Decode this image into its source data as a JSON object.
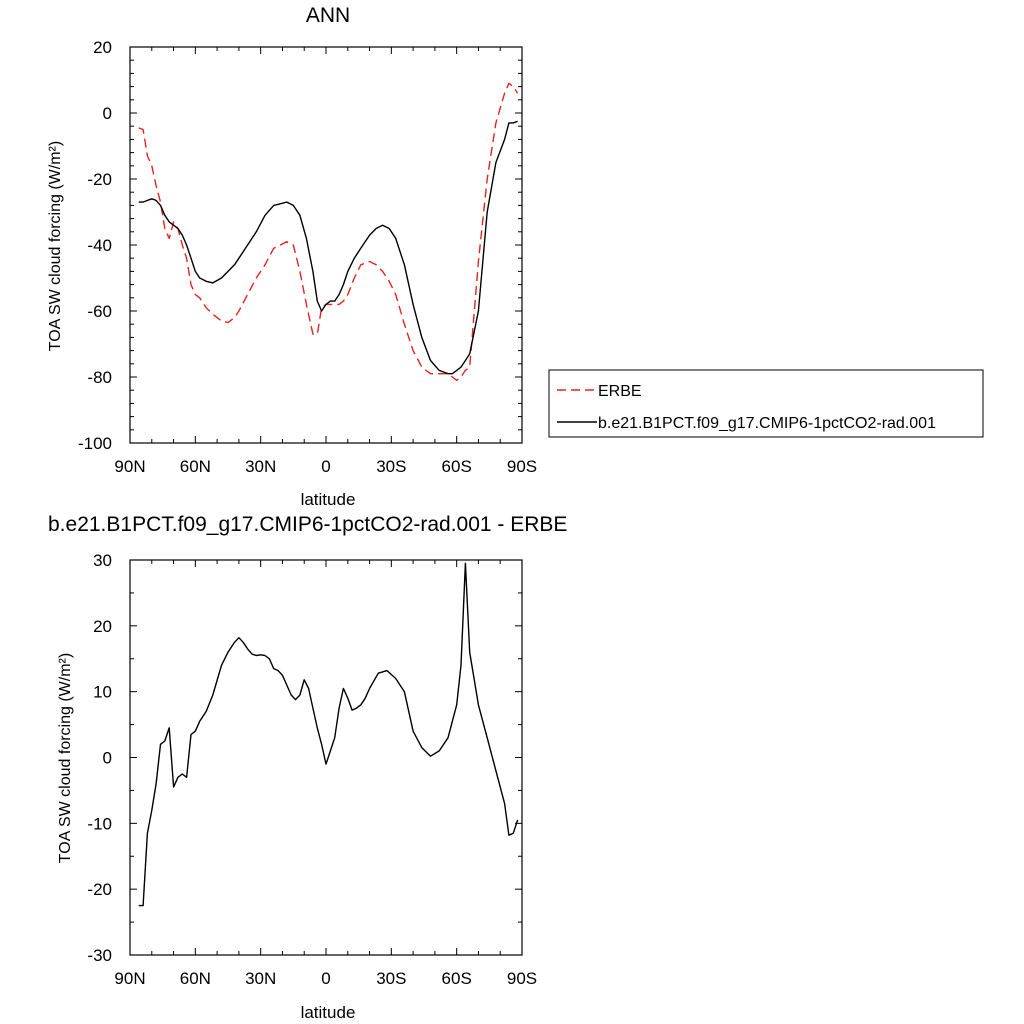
{
  "chart_data": [
    {
      "type": "line",
      "title": "ANN",
      "xlabel": "latitude",
      "ylabel": "TOA SW cloud forcing (W/m²)",
      "xlim": [
        90,
        -90
      ],
      "ylim": [
        -100,
        20
      ],
      "xticks": [
        {
          "value": 90,
          "label": "90N"
        },
        {
          "value": 60,
          "label": "60N"
        },
        {
          "value": 30,
          "label": "30N"
        },
        {
          "value": 0,
          "label": "0"
        },
        {
          "value": -30,
          "label": "30S"
        },
        {
          "value": -60,
          "label": "60S"
        },
        {
          "value": -90,
          "label": "90S"
        }
      ],
      "yticks": [
        20,
        0,
        -20,
        -40,
        -60,
        -80,
        -100
      ],
      "legend_position": "right",
      "series": [
        {
          "name": "ERBE",
          "color": "#e8231c",
          "dash": "dashed",
          "x": [
            86,
            84,
            82,
            80,
            78,
            76,
            74,
            72,
            70,
            68,
            66,
            64,
            62,
            60,
            58,
            55,
            52,
            48,
            45,
            42,
            40,
            36,
            32,
            28,
            24,
            21,
            18,
            15,
            12,
            9,
            6,
            4,
            2,
            0,
            -2,
            -4,
            -6,
            -8,
            -10,
            -13,
            -16,
            -20,
            -23,
            -26,
            -29,
            -32,
            -36,
            -40,
            -44,
            -48,
            -52,
            -56,
            -58,
            -60,
            -62,
            -64,
            -66,
            -70,
            -74,
            -78,
            -82,
            -84,
            -86,
            -88
          ],
          "values": [
            -4.5,
            -5,
            -13,
            -16,
            -22,
            -27,
            -35,
            -38,
            -33,
            -35,
            -40,
            -44,
            -52,
            -55,
            -56,
            -59,
            -61,
            -63,
            -63.5,
            -62,
            -60,
            -55,
            -50,
            -46,
            -41,
            -40,
            -39,
            -40,
            -48,
            -58,
            -67,
            -67,
            -59,
            -58,
            -58,
            -58,
            -58,
            -57,
            -55,
            -50,
            -46,
            -45,
            -46,
            -48,
            -51,
            -55,
            -64,
            -72,
            -77,
            -79,
            -79,
            -79,
            -80,
            -81,
            -80,
            -78,
            -77,
            -45,
            -20,
            -3,
            6,
            9,
            8,
            6
          ]
        },
        {
          "name": "b.e21.B1PCT.f09_g17.CMIP6-1pctCO2-rad.001",
          "color": "#000000",
          "dash": "solid",
          "x": [
            86,
            84,
            82,
            80,
            78,
            76,
            74,
            72,
            70,
            68,
            66,
            64,
            62,
            60,
            58,
            55,
            52,
            48,
            45,
            42,
            40,
            36,
            32,
            28,
            24,
            21,
            18,
            15,
            12,
            9,
            6,
            4,
            2,
            0,
            -2,
            -4,
            -6,
            -8,
            -10,
            -13,
            -16,
            -20,
            -23,
            -26,
            -29,
            -32,
            -36,
            -40,
            -44,
            -48,
            -52,
            -56,
            -58,
            -60,
            -62,
            -64,
            -66,
            -70,
            -74,
            -78,
            -82,
            -84,
            -86,
            -88
          ],
          "values": [
            -27,
            -27,
            -26.5,
            -26,
            -26.5,
            -28,
            -31,
            -33,
            -34,
            -35,
            -37,
            -40,
            -44,
            -48,
            -50,
            -51,
            -51.5,
            -50,
            -48,
            -46,
            -44,
            -40,
            -36,
            -31,
            -28,
            -27.5,
            -27,
            -28,
            -31,
            -38,
            -48,
            -57,
            -60,
            -58,
            -57,
            -57,
            -55,
            -52,
            -48,
            -44,
            -41,
            -37,
            -35,
            -34,
            -35,
            -38,
            -46,
            -58,
            -68,
            -75,
            -78,
            -79,
            -79,
            -78,
            -77,
            -75,
            -73,
            -60,
            -30,
            -15,
            -8,
            -3,
            -3,
            -2.5
          ]
        }
      ]
    },
    {
      "type": "line",
      "title": "b.e21.B1PCT.f09_g17.CMIP6-1pctCO2-rad.001 - ERBE",
      "xlabel": "latitude",
      "ylabel": "TOA SW cloud forcing (W/m²)",
      "xlim": [
        90,
        -90
      ],
      "ylim": [
        -30,
        30
      ],
      "xticks": [
        {
          "value": 90,
          "label": "90N"
        },
        {
          "value": 60,
          "label": "60N"
        },
        {
          "value": 30,
          "label": "30N"
        },
        {
          "value": 0,
          "label": "0"
        },
        {
          "value": -30,
          "label": "30S"
        },
        {
          "value": -60,
          "label": "60S"
        },
        {
          "value": -90,
          "label": "90S"
        }
      ],
      "yticks": [
        30,
        20,
        10,
        0,
        -10,
        -20,
        -30
      ],
      "series": [
        {
          "color": "#000000",
          "dash": "solid",
          "x": [
            86,
            84,
            82,
            80,
            78,
            76,
            74,
            72,
            70,
            68,
            66,
            64,
            62,
            60,
            58,
            55,
            52,
            48,
            45,
            42,
            40,
            38,
            36,
            34,
            32,
            30,
            28,
            26,
            24,
            22,
            20,
            18,
            16,
            14,
            12,
            10,
            8,
            6,
            4,
            2,
            0,
            -2,
            -4,
            -6,
            -8,
            -10,
            -12,
            -14,
            -16,
            -18,
            -20,
            -24,
            -28,
            -32,
            -36,
            -40,
            -44,
            -48,
            -52,
            -56,
            -60,
            -62,
            -64,
            -66,
            -70,
            -74,
            -78,
            -82,
            -84,
            -86,
            -88
          ],
          "values": [
            -22.5,
            -22.5,
            -11.5,
            -8,
            -4,
            2,
            2.5,
            4.5,
            -4.5,
            -3,
            -2.5,
            -3,
            3.5,
            4,
            5.5,
            7,
            9.5,
            14,
            16,
            17.5,
            18.2,
            17.5,
            16.5,
            15.7,
            15.5,
            15.6,
            15.5,
            15,
            13.5,
            13.2,
            12.5,
            11,
            9.5,
            8.8,
            9.5,
            11.8,
            10.5,
            7.5,
            4.5,
            2,
            -1,
            1,
            3,
            7.5,
            10.5,
            9,
            7.2,
            7.5,
            8,
            9,
            10.5,
            12.8,
            13.2,
            12,
            10,
            4,
            1.5,
            0.2,
            1,
            3,
            8,
            14,
            29.5,
            16,
            8,
            3,
            -2,
            -7,
            -11.8,
            -11.5,
            -9.5
          ]
        }
      ]
    }
  ]
}
